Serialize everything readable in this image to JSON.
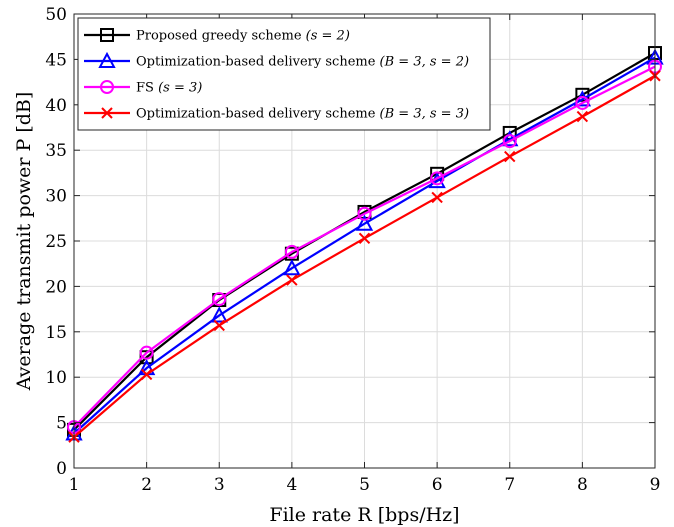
{
  "chart_data": {
    "type": "line",
    "xlabel": "File rate R [bps/Hz]",
    "ylabel": "Average transmit power P [dB]",
    "xlim": [
      1,
      9
    ],
    "ylim": [
      0,
      50
    ],
    "xticks": [
      1,
      2,
      3,
      4,
      5,
      6,
      7,
      8,
      9
    ],
    "yticks": [
      0,
      5,
      10,
      15,
      20,
      25,
      30,
      35,
      40,
      45,
      50
    ],
    "grid": true,
    "legend_position": "top-left",
    "x": [
      1,
      2,
      3,
      4,
      5,
      6,
      7,
      8,
      9
    ],
    "series": [
      {
        "name": "Proposed greedy scheme (s = 2)",
        "color": "#000000",
        "marker": "square",
        "values": [
          4.2,
          12.2,
          18.5,
          23.6,
          28.2,
          32.4,
          36.9,
          41.1,
          45.7
        ]
      },
      {
        "name": "Optimization-based delivery scheme (B = 3, s = 2)",
        "color": "#0000ff",
        "marker": "triangle",
        "values": [
          3.8,
          11.0,
          16.8,
          22.0,
          26.9,
          31.6,
          36.2,
          40.6,
          45.2
        ]
      },
      {
        "name": "FS (s = 3)",
        "color": "#ff00ff",
        "marker": "circle",
        "values": [
          4.5,
          12.7,
          18.6,
          23.8,
          28.0,
          31.9,
          36.0,
          40.2,
          44.2
        ]
      },
      {
        "name": "Optimization-based delivery scheme (B = 3, s = 3)",
        "color": "#ff0000",
        "marker": "x",
        "values": [
          3.4,
          10.3,
          15.7,
          20.7,
          25.3,
          29.8,
          34.3,
          38.7,
          43.2
        ]
      }
    ]
  }
}
